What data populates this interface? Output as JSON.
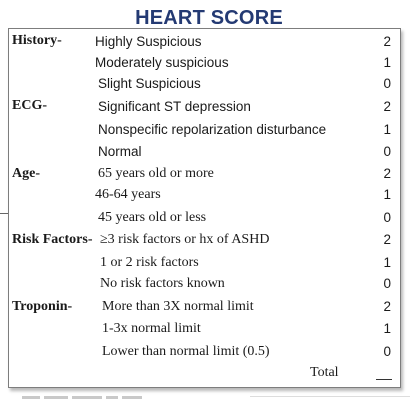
{
  "title": "HEART SCORE",
  "history": {
    "category": "History-",
    "items": [
      {
        "label": "Highly Suspicious",
        "score": "2"
      },
      {
        "label": "Moderately suspicious",
        "score": "1"
      },
      {
        "label": "Slight Suspicious",
        "score": "0"
      }
    ]
  },
  "ecg": {
    "category": "ECG-",
    "items": [
      {
        "label": "Significant ST depression",
        "score": "2"
      },
      {
        "label": "Nonspecific repolarization disturbance",
        "score": "1"
      },
      {
        "label": "Normal",
        "score": "0"
      }
    ]
  },
  "age": {
    "category": "Age-",
    "items": [
      {
        "label": "65 years old or more",
        "score": "2"
      },
      {
        "label": "46-64 years",
        "score": "1"
      },
      {
        "label": "45 years old or less",
        "score": "0"
      }
    ]
  },
  "risk": {
    "category": "Risk Factors-",
    "items": [
      {
        "label": "≥3 risk factors or hx of ASHD",
        "score": "2"
      },
      {
        "label": "1 or 2 risk factors",
        "score": "1"
      },
      {
        "label": "No risk factors known",
        "score": "0"
      }
    ]
  },
  "troponin": {
    "category": "Troponin-",
    "items": [
      {
        "label": "More than 3X normal limit",
        "score": "2"
      },
      {
        "label": "1-3x normal limit",
        "score": "1"
      },
      {
        "label": "Lower than normal limit (0.5)",
        "score": "0"
      }
    ]
  },
  "total_label": "Total"
}
